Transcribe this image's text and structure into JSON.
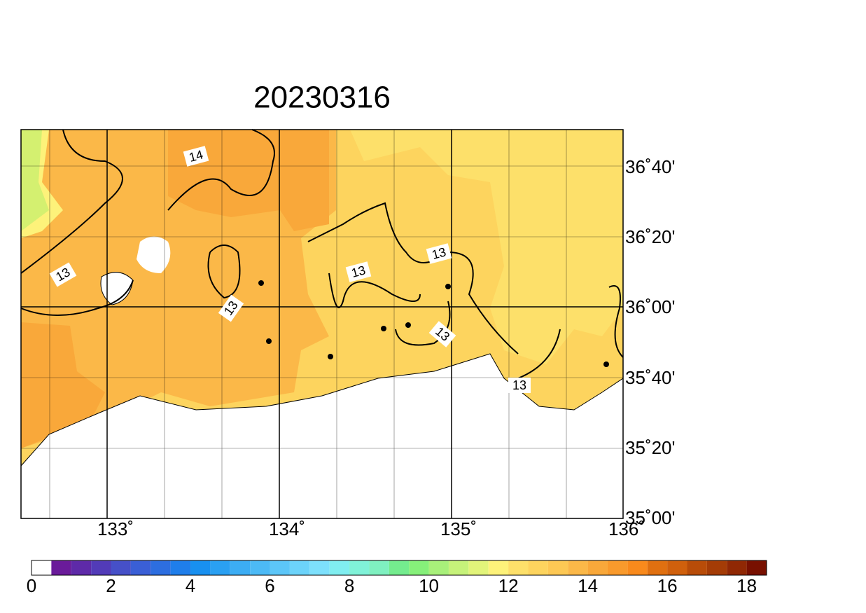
{
  "title": "20230316",
  "lat_labels": [
    "36˚40'",
    "36˚20'",
    "36˚00'",
    "35˚40'",
    "35˚20'",
    "35˚00'"
  ],
  "lon_labels": [
    "133˚",
    "134˚",
    "135˚",
    "136˚"
  ],
  "contour_labels": [
    "14",
    "13",
    "13",
    "13",
    "13",
    "13",
    "13"
  ],
  "colorbar": {
    "ticks": [
      0,
      2,
      4,
      6,
      8,
      10,
      12,
      14,
      16,
      18
    ],
    "colors": [
      "#ffffff",
      "#6a1b9a",
      "#5e2aa8",
      "#523bb8",
      "#4650c8",
      "#3a5fd6",
      "#2d6ee0",
      "#1f7eea",
      "#1890f0",
      "#2aa0f2",
      "#3cadf4",
      "#4cbaf6",
      "#5cc6f8",
      "#6cd3fa",
      "#7de0fc",
      "#80eef0",
      "#80f2d8",
      "#7ff0c0",
      "#74ec8e",
      "#86f07a",
      "#a8f07a",
      "#c6f27a",
      "#e2f47a",
      "#fdf27a",
      "#fde06a",
      "#fdd45e",
      "#fdc854",
      "#fbb848",
      "#f9a83a",
      "#f99a2c",
      "#f98a1c",
      "#e07010",
      "#d0600c",
      "#b84c08",
      "#a43c06",
      "#902804",
      "#781000"
    ]
  }
}
